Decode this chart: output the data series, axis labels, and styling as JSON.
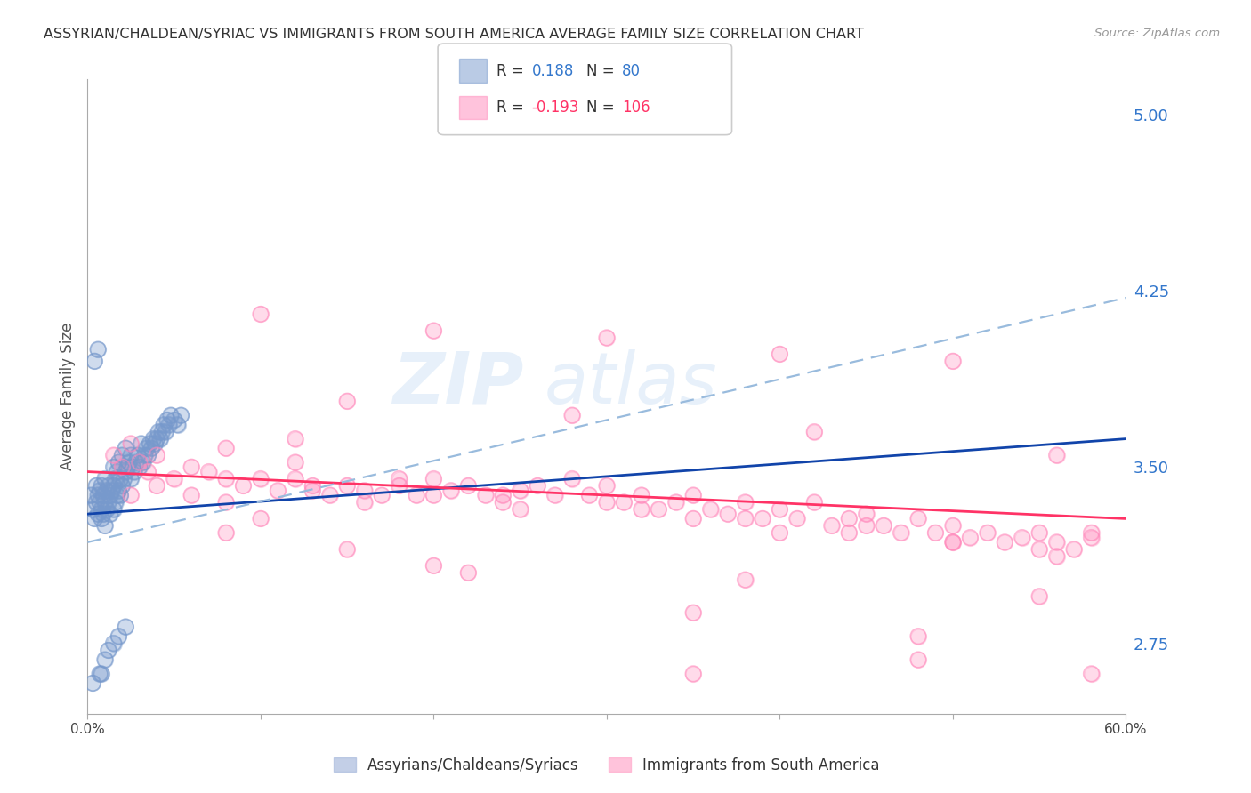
{
  "title": "ASSYRIAN/CHALDEAN/SYRIAC VS IMMIGRANTS FROM SOUTH AMERICA AVERAGE FAMILY SIZE CORRELATION CHART",
  "source": "Source: ZipAtlas.com",
  "ylabel": "Average Family Size",
  "xlim": [
    0.0,
    0.6
  ],
  "ylim": [
    2.45,
    5.15
  ],
  "yticks_right": [
    5.0,
    4.25,
    3.5,
    2.75
  ],
  "xticks": [
    0.0,
    0.1,
    0.2,
    0.3,
    0.4,
    0.5,
    0.6
  ],
  "xtick_labels": [
    "0.0%",
    "",
    "",
    "",
    "",
    "",
    "60.0%"
  ],
  "bottom_legend": [
    "Assyrians/Chaldeans/Syriacs",
    "Immigrants from South America"
  ],
  "bottom_legend_colors": [
    "#aabbdd",
    "#ffaacc"
  ],
  "blue_color": "#7799cc",
  "pink_color": "#ff88bb",
  "blue_line_color": "#1144aa",
  "pink_line_color": "#ff3366",
  "dashed_line_color": "#99bbdd",
  "title_color": "#333333",
  "right_axis_color": "#3377cc",
  "grid_color": "#dddddd",
  "background_color": "#ffffff",
  "blue_scatter_x": [
    0.002,
    0.003,
    0.004,
    0.005,
    0.005,
    0.006,
    0.006,
    0.007,
    0.007,
    0.008,
    0.008,
    0.008,
    0.009,
    0.009,
    0.01,
    0.01,
    0.01,
    0.011,
    0.011,
    0.012,
    0.012,
    0.013,
    0.013,
    0.014,
    0.015,
    0.015,
    0.015,
    0.016,
    0.016,
    0.017,
    0.017,
    0.018,
    0.018,
    0.019,
    0.019,
    0.02,
    0.02,
    0.021,
    0.022,
    0.022,
    0.023,
    0.024,
    0.025,
    0.025,
    0.026,
    0.027,
    0.028,
    0.029,
    0.03,
    0.031,
    0.032,
    0.033,
    0.034,
    0.035,
    0.036,
    0.037,
    0.038,
    0.039,
    0.04,
    0.041,
    0.042,
    0.043,
    0.044,
    0.045,
    0.046,
    0.047,
    0.048,
    0.05,
    0.052,
    0.054,
    0.004,
    0.006,
    0.008,
    0.01,
    0.012,
    0.015,
    0.018,
    0.022,
    0.003,
    0.007
  ],
  "blue_scatter_y": [
    3.38,
    3.32,
    3.28,
    3.35,
    3.42,
    3.3,
    3.38,
    3.35,
    3.4,
    3.28,
    3.32,
    3.42,
    3.3,
    3.38,
    3.25,
    3.35,
    3.45,
    3.32,
    3.4,
    3.35,
    3.42,
    3.3,
    3.38,
    3.4,
    3.32,
    3.42,
    3.5,
    3.35,
    3.45,
    3.38,
    3.48,
    3.4,
    3.52,
    3.38,
    3.45,
    3.42,
    3.55,
    3.45,
    3.48,
    3.58,
    3.5,
    3.52,
    3.45,
    3.55,
    3.5,
    3.48,
    3.52,
    3.55,
    3.5,
    3.6,
    3.52,
    3.55,
    3.58,
    3.55,
    3.6,
    3.58,
    3.62,
    3.6,
    3.62,
    3.65,
    3.62,
    3.65,
    3.68,
    3.65,
    3.7,
    3.68,
    3.72,
    3.7,
    3.68,
    3.72,
    3.95,
    4.0,
    2.62,
    2.68,
    2.72,
    2.75,
    2.78,
    2.82,
    2.58,
    2.62
  ],
  "pink_scatter_x": [
    0.015,
    0.02,
    0.025,
    0.03,
    0.035,
    0.04,
    0.05,
    0.06,
    0.07,
    0.08,
    0.09,
    0.1,
    0.11,
    0.12,
    0.13,
    0.14,
    0.15,
    0.16,
    0.17,
    0.18,
    0.19,
    0.2,
    0.21,
    0.22,
    0.23,
    0.24,
    0.25,
    0.26,
    0.27,
    0.28,
    0.29,
    0.3,
    0.31,
    0.32,
    0.33,
    0.34,
    0.35,
    0.36,
    0.37,
    0.38,
    0.39,
    0.4,
    0.41,
    0.42,
    0.43,
    0.44,
    0.45,
    0.46,
    0.47,
    0.48,
    0.49,
    0.5,
    0.51,
    0.52,
    0.53,
    0.54,
    0.55,
    0.56,
    0.57,
    0.58,
    0.025,
    0.04,
    0.06,
    0.08,
    0.1,
    0.13,
    0.16,
    0.2,
    0.25,
    0.3,
    0.35,
    0.4,
    0.45,
    0.5,
    0.55,
    0.58,
    0.08,
    0.12,
    0.18,
    0.24,
    0.32,
    0.38,
    0.44,
    0.5,
    0.56,
    0.1,
    0.2,
    0.3,
    0.4,
    0.5,
    0.15,
    0.28,
    0.42,
    0.56,
    0.35,
    0.48,
    0.2,
    0.38,
    0.55,
    0.12,
    0.08,
    0.15,
    0.22,
    0.35,
    0.48,
    0.58
  ],
  "pink_scatter_y": [
    3.55,
    3.5,
    3.6,
    3.52,
    3.48,
    3.55,
    3.45,
    3.5,
    3.48,
    3.45,
    3.42,
    3.45,
    3.4,
    3.45,
    3.42,
    3.38,
    3.42,
    3.4,
    3.38,
    3.42,
    3.38,
    3.45,
    3.4,
    3.42,
    3.38,
    3.35,
    3.4,
    3.42,
    3.38,
    3.45,
    3.38,
    3.42,
    3.35,
    3.38,
    3.32,
    3.35,
    3.38,
    3.32,
    3.3,
    3.35,
    3.28,
    3.32,
    3.28,
    3.35,
    3.25,
    3.28,
    3.3,
    3.25,
    3.22,
    3.28,
    3.22,
    3.25,
    3.2,
    3.22,
    3.18,
    3.2,
    3.22,
    3.18,
    3.15,
    3.2,
    3.38,
    3.42,
    3.38,
    3.35,
    3.28,
    3.4,
    3.35,
    3.38,
    3.32,
    3.35,
    3.28,
    3.22,
    3.25,
    3.18,
    3.15,
    3.22,
    3.58,
    3.52,
    3.45,
    3.38,
    3.32,
    3.28,
    3.22,
    3.18,
    3.12,
    4.15,
    4.08,
    4.05,
    3.98,
    3.95,
    3.78,
    3.72,
    3.65,
    3.55,
    2.62,
    2.68,
    3.08,
    3.02,
    2.95,
    3.62,
    3.22,
    3.15,
    3.05,
    2.88,
    2.78,
    2.62
  ],
  "blue_trend_x": [
    0.0,
    0.6
  ],
  "blue_trend_y": [
    3.3,
    3.62
  ],
  "pink_trend_x": [
    0.0,
    0.6
  ],
  "pink_trend_y": [
    3.48,
    3.28
  ],
  "dashed_trend_x": [
    0.0,
    0.6
  ],
  "dashed_trend_y": [
    3.18,
    4.22
  ]
}
